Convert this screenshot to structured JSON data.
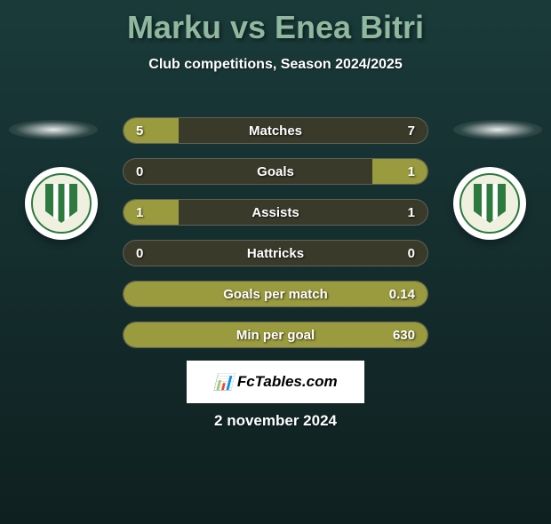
{
  "title": "Marku vs Enea Bitri",
  "subtitle": "Club competitions, Season 2024/2025",
  "date": "2 november 2024",
  "source": "FcTables.com",
  "colors": {
    "title_color": "#8fb89e",
    "bar_fill": "#9a9a3e",
    "bar_bg": "#3a3a2a",
    "background_top": "#1a3a3a",
    "background_bottom": "#0f2020"
  },
  "stats": [
    {
      "label": "Matches",
      "left_value": "5",
      "right_value": "7",
      "left_pct": 18,
      "right_pct": 0
    },
    {
      "label": "Goals",
      "left_value": "0",
      "right_value": "1",
      "left_pct": 0,
      "right_pct": 18
    },
    {
      "label": "Assists",
      "left_value": "1",
      "right_value": "1",
      "left_pct": 18,
      "right_pct": 0
    },
    {
      "label": "Hattricks",
      "left_value": "0",
      "right_value": "0",
      "left_pct": 0,
      "right_pct": 0
    },
    {
      "label": "Goals per match",
      "left_value": "",
      "right_value": "0.14",
      "full": true
    },
    {
      "label": "Min per goal",
      "left_value": "",
      "right_value": "630",
      "full": true
    }
  ]
}
